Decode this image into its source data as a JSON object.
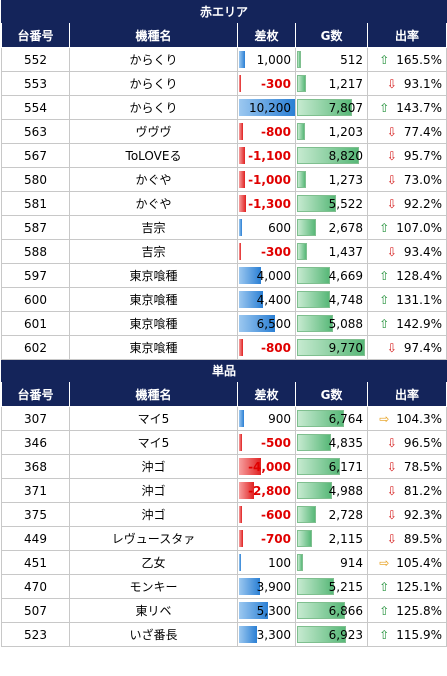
{
  "sections": [
    {
      "title": "赤エリア",
      "headers": [
        "台番号",
        "機種名",
        "差枚",
        "G数",
        "出率"
      ],
      "rows": [
        {
          "no": "552",
          "name": "からくり",
          "diff": "1,000",
          "diff_val": 1000,
          "games": "512",
          "games_val": 512,
          "dir": "up",
          "rate": "165.5%"
        },
        {
          "no": "553",
          "name": "からくり",
          "diff": "-300",
          "diff_val": -300,
          "games": "1,217",
          "games_val": 1217,
          "dir": "down",
          "rate": "93.1%"
        },
        {
          "no": "554",
          "name": "からくり",
          "diff": "10,200",
          "diff_val": 10200,
          "games": "7,807",
          "games_val": 7807,
          "dir": "up",
          "rate": "143.7%"
        },
        {
          "no": "563",
          "name": "ヴヴヴ",
          "diff": "-800",
          "diff_val": -800,
          "games": "1,203",
          "games_val": 1203,
          "dir": "down",
          "rate": "77.4%"
        },
        {
          "no": "567",
          "name": "ToLOVEる",
          "diff": "-1,100",
          "diff_val": -1100,
          "games": "8,820",
          "games_val": 8820,
          "dir": "down",
          "rate": "95.7%"
        },
        {
          "no": "580",
          "name": "かぐや",
          "diff": "-1,000",
          "diff_val": -1000,
          "games": "1,273",
          "games_val": 1273,
          "dir": "down",
          "rate": "73.0%"
        },
        {
          "no": "581",
          "name": "かぐや",
          "diff": "-1,300",
          "diff_val": -1300,
          "games": "5,522",
          "games_val": 5522,
          "dir": "down",
          "rate": "92.2%"
        },
        {
          "no": "587",
          "name": "吉宗",
          "diff": "600",
          "diff_val": 600,
          "games": "2,678",
          "games_val": 2678,
          "dir": "up",
          "rate": "107.0%"
        },
        {
          "no": "588",
          "name": "吉宗",
          "diff": "-300",
          "diff_val": -300,
          "games": "1,437",
          "games_val": 1437,
          "dir": "down",
          "rate": "93.4%"
        },
        {
          "no": "597",
          "name": "東京喰種",
          "diff": "4,000",
          "diff_val": 4000,
          "games": "4,669",
          "games_val": 4669,
          "dir": "up",
          "rate": "128.4%"
        },
        {
          "no": "600",
          "name": "東京喰種",
          "diff": "4,400",
          "diff_val": 4400,
          "games": "4,748",
          "games_val": 4748,
          "dir": "up",
          "rate": "131.1%"
        },
        {
          "no": "601",
          "name": "東京喰種",
          "diff": "6,500",
          "diff_val": 6500,
          "games": "5,088",
          "games_val": 5088,
          "dir": "up",
          "rate": "142.9%"
        },
        {
          "no": "602",
          "name": "東京喰種",
          "diff": "-800",
          "diff_val": -800,
          "games": "9,770",
          "games_val": 9770,
          "dir": "down",
          "rate": "97.4%"
        }
      ]
    },
    {
      "title": "単品",
      "headers": [
        "台番号",
        "機種名",
        "差枚",
        "G数",
        "出率"
      ],
      "rows": [
        {
          "no": "307",
          "name": "マイ5",
          "diff": "900",
          "diff_val": 900,
          "games": "6,764",
          "games_val": 6764,
          "dir": "right",
          "rate": "104.3%"
        },
        {
          "no": "346",
          "name": "マイ5",
          "diff": "-500",
          "diff_val": -500,
          "games": "4,835",
          "games_val": 4835,
          "dir": "down",
          "rate": "96.5%"
        },
        {
          "no": "368",
          "name": "沖ゴ",
          "diff": "-4,000",
          "diff_val": -4000,
          "games": "6,171",
          "games_val": 6171,
          "dir": "down",
          "rate": "78.5%"
        },
        {
          "no": "371",
          "name": "沖ゴ",
          "diff": "-2,800",
          "diff_val": -2800,
          "games": "4,988",
          "games_val": 4988,
          "dir": "down",
          "rate": "81.2%"
        },
        {
          "no": "375",
          "name": "沖ゴ",
          "diff": "-600",
          "diff_val": -600,
          "games": "2,728",
          "games_val": 2728,
          "dir": "down",
          "rate": "92.3%"
        },
        {
          "no": "449",
          "name": "レヴュースタァ",
          "diff": "-700",
          "diff_val": -700,
          "games": "2,115",
          "games_val": 2115,
          "dir": "down",
          "rate": "89.5%"
        },
        {
          "no": "451",
          "name": "乙女",
          "diff": "100",
          "diff_val": 100,
          "games": "914",
          "games_val": 914,
          "dir": "right",
          "rate": "105.4%"
        },
        {
          "no": "470",
          "name": "モンキー",
          "diff": "3,900",
          "diff_val": 3900,
          "games": "5,215",
          "games_val": 5215,
          "dir": "up",
          "rate": "125.1%"
        },
        {
          "no": "507",
          "name": "東リベ",
          "diff": "5,300",
          "diff_val": 5300,
          "games": "6,866",
          "games_val": 6866,
          "dir": "up",
          "rate": "125.8%"
        },
        {
          "no": "523",
          "name": "いざ番長",
          "diff": "3,300",
          "diff_val": 3300,
          "games": "6,923",
          "games_val": 6923,
          "dir": "up",
          "rate": "115.9%"
        }
      ]
    }
  ],
  "colors": {
    "header_bg": "#14245a",
    "positive_bar": "#2a7fd4",
    "negative_bar": "#e02020",
    "games_bar": "#58b878",
    "up_arrow": "#22913a",
    "down_arrow": "#d62020",
    "flat_arrow": "#e59a10"
  },
  "icons": {
    "up": "arrow-up-icon",
    "down": "arrow-down-icon",
    "right": "arrow-right-icon"
  },
  "scale": {
    "diff_max": 10200,
    "games_max": 10000
  }
}
